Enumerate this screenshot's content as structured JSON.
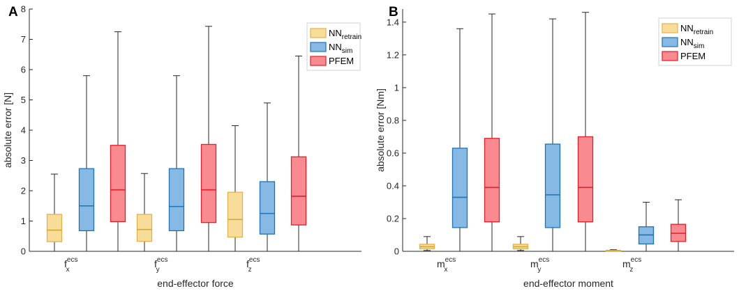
{
  "colors": {
    "retrain": {
      "fill": "#f8dd9a",
      "stroke": "#e0b448",
      "median": "#d9a52c"
    },
    "sim": {
      "fill": "#86b9e3",
      "stroke": "#1f72b8",
      "median": "#1f72b8"
    },
    "pfem": {
      "fill": "#f98a90",
      "stroke": "#e0202d",
      "median": "#e0202d"
    },
    "axis": "#262626",
    "whisker": "#262626"
  },
  "chart_data": [
    {
      "type": "boxplot",
      "panel": "A",
      "xlabel": "end-effector force",
      "ylabel": "absolute error [N]",
      "ylim": [
        0,
        8
      ],
      "yticks": [
        "0",
        "1",
        "2",
        "3",
        "4",
        "5",
        "6",
        "7",
        "8"
      ],
      "categories": [
        {
          "base": "f",
          "sub": "x",
          "sup": "ecs"
        },
        {
          "base": "f",
          "sub": "y",
          "sup": "ecs"
        },
        {
          "base": "f",
          "sub": "z",
          "sup": "ecs"
        }
      ],
      "legend": [
        {
          "key": "retrain",
          "base": "NN",
          "sub": "retrain"
        },
        {
          "key": "sim",
          "base": "NN",
          "sub": "sim"
        },
        {
          "key": "pfem",
          "base": "PFEM",
          "sub": ""
        }
      ],
      "series": [
        {
          "name": "NN_retrain",
          "key": "retrain",
          "boxes": [
            {
              "min": 0,
              "q1": 0.32,
              "median": 0.7,
              "q3": 1.22,
              "max": 2.55
            },
            {
              "min": 0,
              "q1": 0.33,
              "median": 0.72,
              "q3": 1.22,
              "max": 2.57
            },
            {
              "min": 0,
              "q1": 0.47,
              "median": 1.05,
              "q3": 1.95,
              "max": 4.15
            }
          ]
        },
        {
          "name": "NN_sim",
          "key": "sim",
          "boxes": [
            {
              "min": 0,
              "q1": 0.68,
              "median": 1.5,
              "q3": 2.73,
              "max": 5.8
            },
            {
              "min": 0,
              "q1": 0.68,
              "median": 1.48,
              "q3": 2.73,
              "max": 5.8
            },
            {
              "min": 0,
              "q1": 0.57,
              "median": 1.25,
              "q3": 2.3,
              "max": 4.9
            }
          ]
        },
        {
          "name": "PFEM",
          "key": "pfem",
          "boxes": [
            {
              "min": 0,
              "q1": 0.98,
              "median": 2.03,
              "q3": 3.5,
              "max": 7.25
            },
            {
              "min": 0,
              "q1": 0.95,
              "median": 2.03,
              "q3": 3.53,
              "max": 7.43
            },
            {
              "min": 0,
              "q1": 0.87,
              "median": 1.82,
              "q3": 3.12,
              "max": 6.45
            }
          ]
        }
      ]
    },
    {
      "type": "boxplot",
      "panel": "B",
      "xlabel": "end-effector moment",
      "ylabel": "absolute error [Nm]",
      "ylim": [
        0,
        1.48
      ],
      "yticks": [
        "0",
        "0.2",
        "0.4",
        "0.6",
        "0.8",
        "1",
        "1.2",
        "1.4"
      ],
      "ytick_values": [
        0,
        0.2,
        0.4,
        0.6,
        0.8,
        1.0,
        1.2,
        1.4
      ],
      "categories": [
        {
          "base": "m",
          "sub": "x",
          "sup": "ecs"
        },
        {
          "base": "m",
          "sub": "y",
          "sup": "ecs"
        },
        {
          "base": "m",
          "sub": "z",
          "sup": "ecs"
        }
      ],
      "legend": [
        {
          "key": "retrain",
          "base": "NN",
          "sub": "retrain"
        },
        {
          "key": "sim",
          "base": "NN",
          "sub": "sim"
        },
        {
          "key": "pfem",
          "base": "PFEM",
          "sub": ""
        }
      ],
      "series": [
        {
          "name": "NN_retrain",
          "key": "retrain",
          "boxes": [
            {
              "min": 0.005,
              "q1": 0.015,
              "median": 0.028,
              "q3": 0.043,
              "max": 0.09
            },
            {
              "min": 0.005,
              "q1": 0.015,
              "median": 0.028,
              "q3": 0.043,
              "max": 0.09
            },
            {
              "min": 0.0,
              "q1": 0.002,
              "median": 0.004,
              "q3": 0.006,
              "max": 0.01
            }
          ]
        },
        {
          "name": "NN_sim",
          "key": "sim",
          "boxes": [
            {
              "min": 0,
              "q1": 0.145,
              "median": 0.33,
              "q3": 0.63,
              "max": 1.36
            },
            {
              "min": 0,
              "q1": 0.145,
              "median": 0.345,
              "q3": 0.655,
              "max": 1.42
            },
            {
              "min": 0,
              "q1": 0.045,
              "median": 0.1,
              "q3": 0.15,
              "max": 0.3
            }
          ]
        },
        {
          "name": "PFEM",
          "key": "pfem",
          "boxes": [
            {
              "min": 0,
              "q1": 0.18,
              "median": 0.39,
              "q3": 0.69,
              "max": 1.45
            },
            {
              "min": 0,
              "q1": 0.18,
              "median": 0.39,
              "q3": 0.7,
              "max": 1.46
            },
            {
              "min": 0,
              "q1": 0.06,
              "median": 0.11,
              "q3": 0.165,
              "max": 0.315
            }
          ]
        }
      ]
    }
  ]
}
